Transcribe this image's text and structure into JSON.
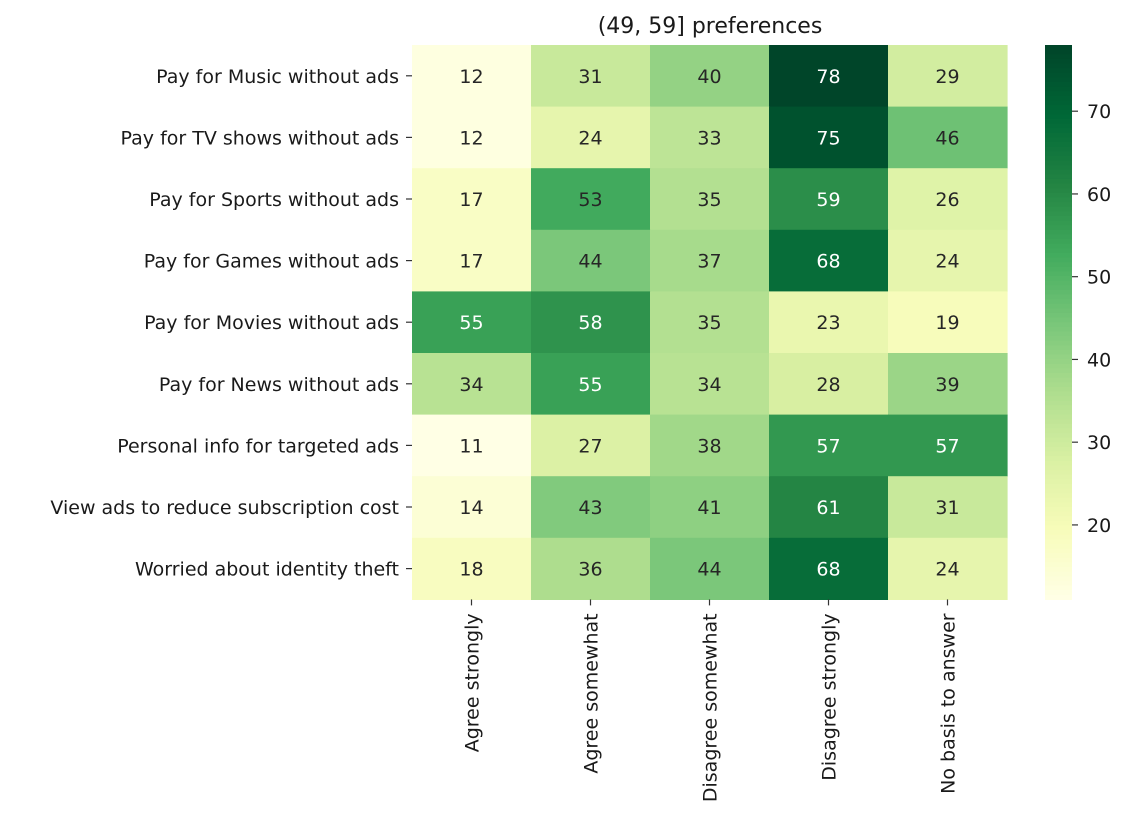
{
  "chart_data": {
    "type": "heatmap",
    "title": "(49, 59] preferences",
    "rows": [
      "Pay for Music without ads",
      "Pay for TV shows without ads",
      "Pay for Sports without ads",
      "Pay for Games without ads",
      "Pay for Movies without ads",
      "Pay for News without ads",
      "Personal info for targeted ads",
      "View ads to reduce subscription cost",
      "Worried about identity theft"
    ],
    "columns": [
      "Agree strongly",
      "Agree somewhat",
      "Disagree somewhat",
      "Disagree strongly",
      "No basis to answer"
    ],
    "values": [
      [
        12,
        31,
        40,
        78,
        29
      ],
      [
        12,
        24,
        33,
        75,
        46
      ],
      [
        17,
        53,
        35,
        59,
        26
      ],
      [
        17,
        44,
        37,
        68,
        24
      ],
      [
        55,
        58,
        35,
        23,
        19
      ],
      [
        34,
        55,
        34,
        28,
        39
      ],
      [
        11,
        27,
        38,
        57,
        57
      ],
      [
        14,
        43,
        41,
        61,
        31
      ],
      [
        18,
        36,
        44,
        68,
        24
      ]
    ],
    "colormap": "YlGn",
    "vmin": 11,
    "vmax": 78,
    "colorbar_ticks": [
      20,
      30,
      40,
      50,
      60,
      70
    ]
  }
}
